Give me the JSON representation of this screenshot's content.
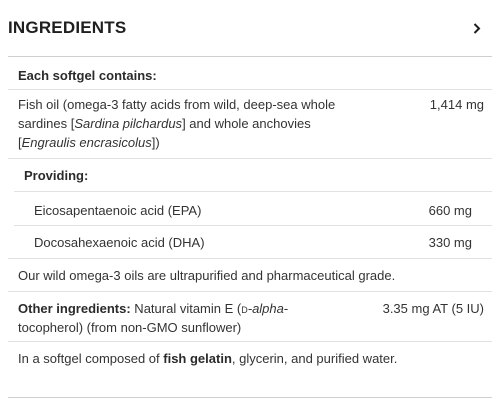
{
  "section": {
    "title": "INGREDIENTS"
  },
  "table": {
    "heading": "Each softgel contains:",
    "fish_oil": {
      "line1": "Fish oil (omega-3 fatty acids from wild, deep-sea whole",
      "line2_pre": "sardines [",
      "line2_italic": "Sardina pilchardus",
      "line2_post": "] and whole anchovies",
      "line3_pre": "[",
      "line3_italic": "Engraulis encrasicolus",
      "line3_post": "])",
      "amount": "1,414 mg"
    },
    "providing_label": "Providing:",
    "epa": {
      "name": "Eicosapentaenoic acid (EPA)",
      "amount": "660 mg"
    },
    "dha": {
      "name": "Docosahexaenoic acid (DHA)",
      "amount": "330 mg"
    },
    "note": "Our wild omega-3 oils are ultrapurified and pharmaceutical grade.",
    "other": {
      "label": "Other ingredients:",
      "text1": " Natural vitamin E (",
      "smallcaps": "d",
      "italic": "-alpha",
      "text1_end": "-",
      "line2": "tocopherol) (from non-GMO sunflower)",
      "amount": "3.35 mg AT (5 IU)"
    },
    "softgel": {
      "pre": "In a softgel composed of ",
      "bold": "fish gelatin",
      "post": ", glycerin, and purified water."
    }
  },
  "icons": {
    "expand": "chevron-right-icon"
  },
  "colors": {
    "divider": "#cfcfcf",
    "text": "#2b2b2b"
  }
}
